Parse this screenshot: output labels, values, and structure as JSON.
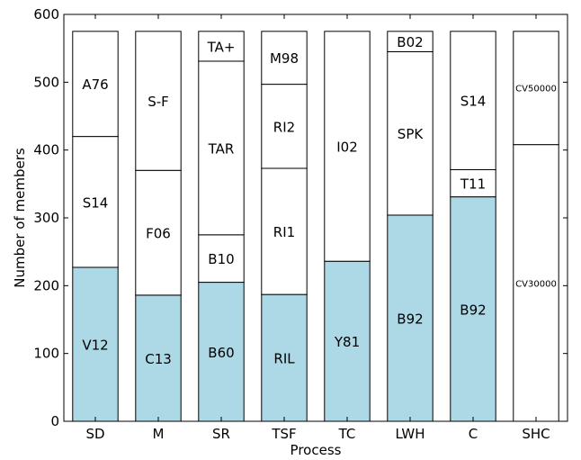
{
  "chart_data": {
    "type": "bar",
    "stacked": true,
    "xlabel": "Process",
    "ylabel": "Number of members",
    "ylim": [
      0,
      600
    ],
    "yticks": [
      0,
      100,
      200,
      300,
      400,
      500,
      600
    ],
    "grid": false,
    "colors": {
      "highlight": "#add8e6",
      "plain": "#ffffff",
      "edge": "#000000"
    },
    "categories": [
      "SD",
      "M",
      "SR",
      "TSF",
      "TC",
      "LWH",
      "C",
      "SHC"
    ],
    "stacks": [
      {
        "category": "SD",
        "segments": [
          {
            "label": "V12",
            "value": 227,
            "highlight": true
          },
          {
            "label": "S14",
            "value": 193,
            "highlight": false
          },
          {
            "label": "A76",
            "value": 155,
            "highlight": false
          }
        ]
      },
      {
        "category": "M",
        "segments": [
          {
            "label": "C13",
            "value": 186,
            "highlight": true
          },
          {
            "label": "F06",
            "value": 184,
            "highlight": false
          },
          {
            "label": "S-F",
            "value": 205,
            "highlight": false
          }
        ]
      },
      {
        "category": "SR",
        "segments": [
          {
            "label": "B60",
            "value": 205,
            "highlight": true
          },
          {
            "label": "B10",
            "value": 70,
            "highlight": false
          },
          {
            "label": "TAR",
            "value": 256,
            "highlight": false
          },
          {
            "label": "TA+",
            "value": 44,
            "highlight": false
          }
        ]
      },
      {
        "category": "TSF",
        "segments": [
          {
            "label": "RIL",
            "value": 187,
            "highlight": true
          },
          {
            "label": "RI1",
            "value": 186,
            "highlight": false
          },
          {
            "label": "RI2",
            "value": 124,
            "highlight": false
          },
          {
            "label": "M98",
            "value": 78,
            "highlight": false
          }
        ]
      },
      {
        "category": "TC",
        "segments": [
          {
            "label": "Y81",
            "value": 236,
            "highlight": true
          },
          {
            "label": "I02",
            "value": 339,
            "highlight": false
          }
        ]
      },
      {
        "category": "LWH",
        "segments": [
          {
            "label": "B92",
            "value": 304,
            "highlight": true
          },
          {
            "label": "SPK",
            "value": 241,
            "highlight": false
          },
          {
            "label": "B02",
            "value": 30,
            "highlight": false
          }
        ]
      },
      {
        "category": "C",
        "segments": [
          {
            "label": "B92",
            "value": 331,
            "highlight": true
          },
          {
            "label": "T11",
            "value": 40,
            "highlight": false
          },
          {
            "label": "S14",
            "value": 204,
            "highlight": false
          }
        ]
      },
      {
        "category": "SHC",
        "segments": [
          {
            "label": "CV30000",
            "value": 408,
            "highlight": false,
            "small": true
          },
          {
            "label": "CV50000",
            "value": 167,
            "highlight": false,
            "small": true
          }
        ]
      }
    ]
  }
}
